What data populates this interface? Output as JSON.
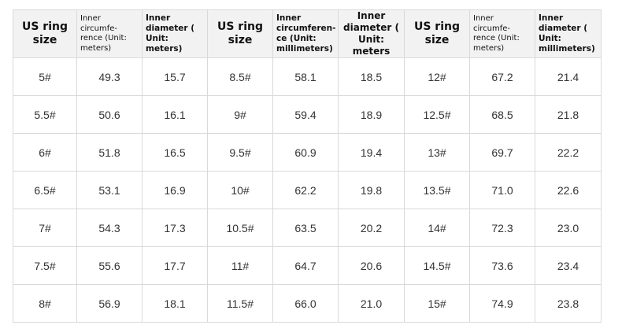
{
  "table": {
    "headers": [
      "US ring size",
      "Inner circumfe-rence (Unit: meters)",
      "Inner diameter ( Unit: meters)",
      "US ring size",
      "Inner circumferen-ce (Unit: millimeters)",
      "Inner diameter ( Unit: meters",
      "US ring size",
      "Inner circumfe-rence (Unit: meters)",
      "Inner diameter ( Unit: millimeters)"
    ],
    "rows": [
      [
        "5#",
        "49.3",
        "15.7",
        "8.5#",
        "58.1",
        "18.5",
        "12#",
        "67.2",
        "21.4"
      ],
      [
        "5.5#",
        "50.6",
        "16.1",
        "9#",
        "59.4",
        "18.9",
        "12.5#",
        "68.5",
        "21.8"
      ],
      [
        "6#",
        "51.8",
        "16.5",
        "9.5#",
        "60.9",
        "19.4",
        "13#",
        "69.7",
        "22.2"
      ],
      [
        "6.5#",
        "53.1",
        "16.9",
        "10#",
        "62.2",
        "19.8",
        "13.5#",
        "71.0",
        "22.6"
      ],
      [
        "7#",
        "54.3",
        "17.3",
        "10.5#",
        "63.5",
        "20.2",
        "14#",
        "72.3",
        "23.0"
      ],
      [
        "7.5#",
        "55.6",
        "17.7",
        "11#",
        "64.7",
        "20.6",
        "14.5#",
        "73.6",
        "23.4"
      ],
      [
        "8#",
        "56.9",
        "18.1",
        "11.5#",
        "66.0",
        "21.0",
        "15#",
        "74.9",
        "23.8"
      ]
    ]
  }
}
